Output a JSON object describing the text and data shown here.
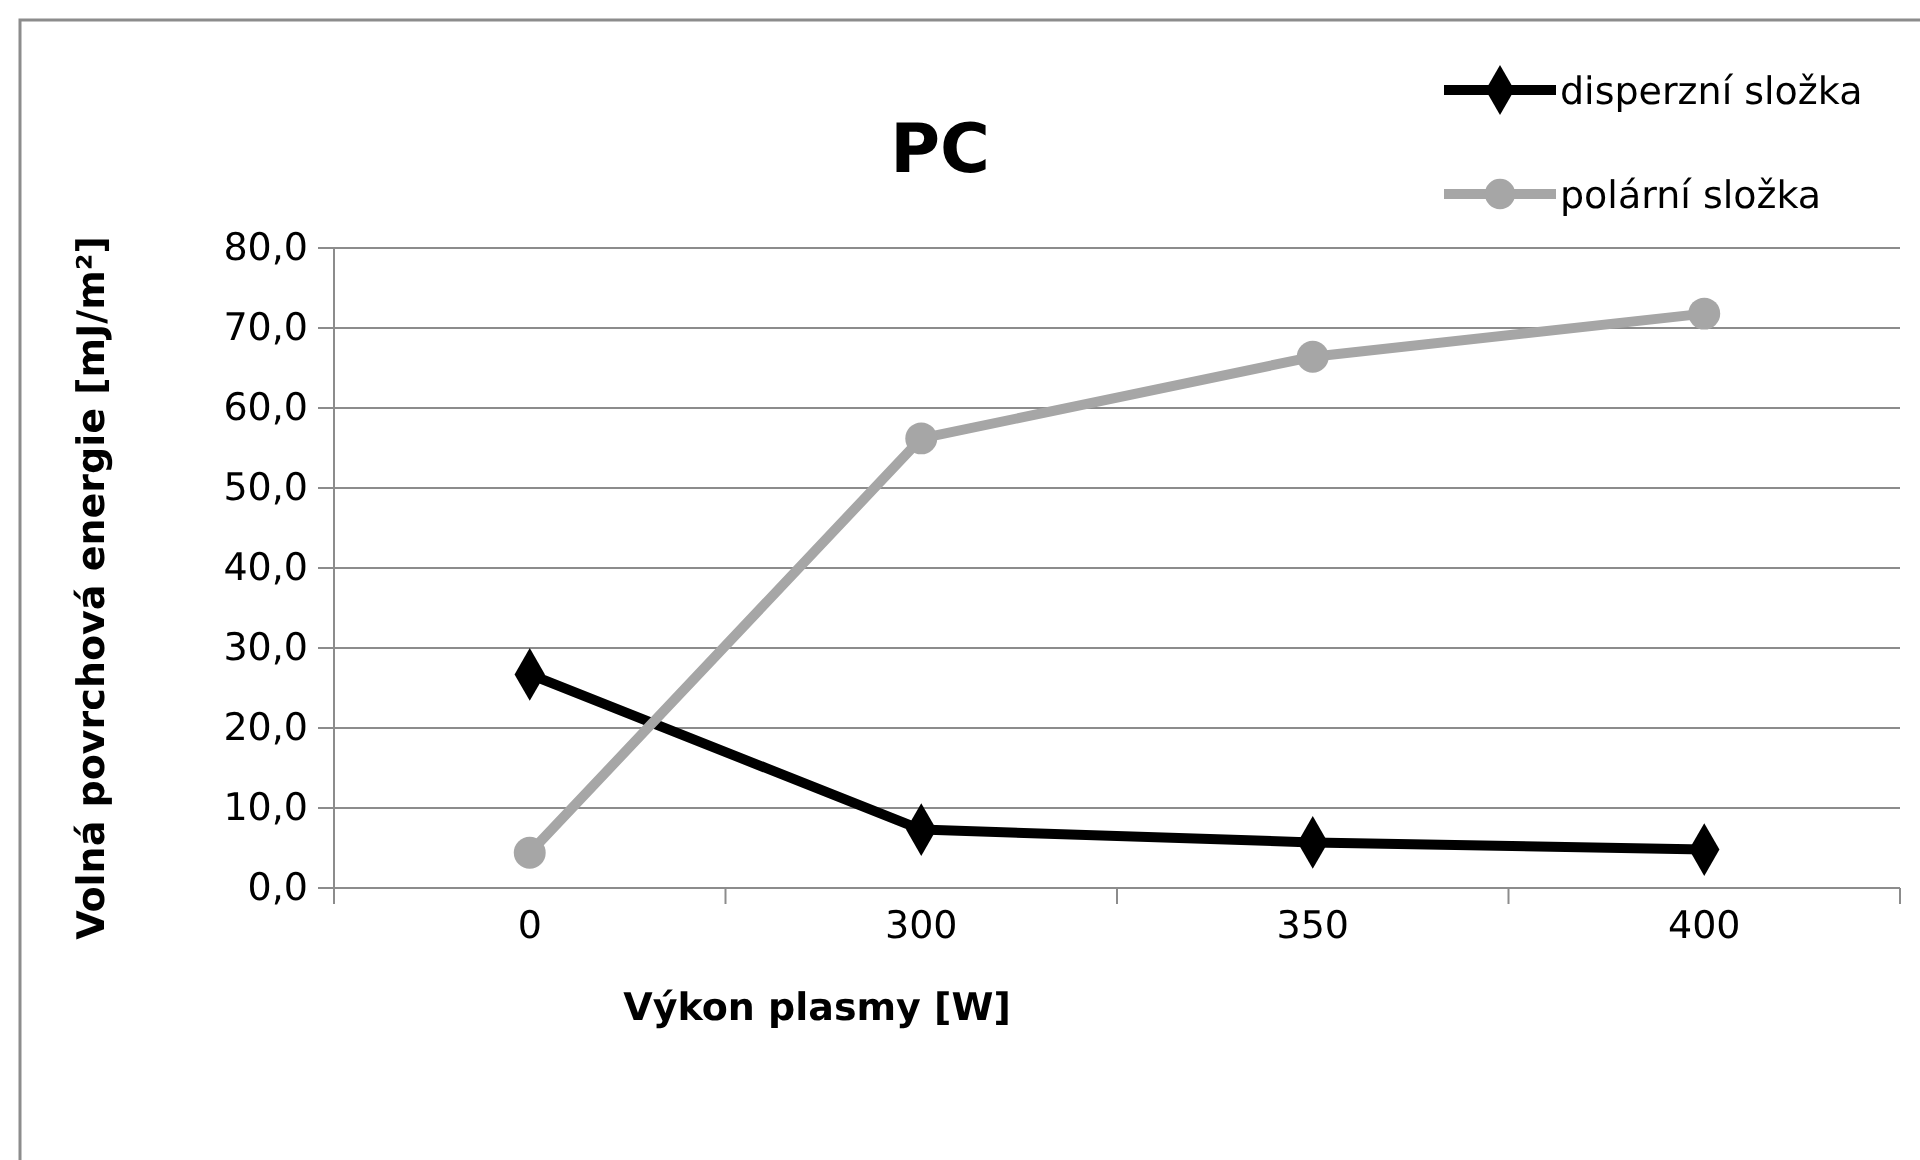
{
  "chart_data": {
    "type": "line",
    "title": "PC",
    "xlabel": "Výkon plasmy [W]",
    "ylabel": "Volná povrchová energie [mJ/m²]",
    "categories": [
      "0",
      "300",
      "350",
      "400"
    ],
    "series": [
      {
        "name": "disperzní složka",
        "color": "#000000",
        "marker": "diamond",
        "values": [
          26.7,
          7.3,
          5.7,
          4.8
        ]
      },
      {
        "name": "polární složka",
        "color": "#a6a6a6",
        "marker": "circle",
        "values": [
          4.4,
          56.2,
          66.4,
          71.8
        ]
      }
    ],
    "ylim": [
      0,
      80
    ],
    "yticks": [
      {
        "value": 0,
        "label": "0,0"
      },
      {
        "value": 10,
        "label": "10,0"
      },
      {
        "value": 20,
        "label": "20,0"
      },
      {
        "value": 30,
        "label": "30,0"
      },
      {
        "value": 40,
        "label": "40,0"
      },
      {
        "value": 50,
        "label": "50,0"
      },
      {
        "value": 60,
        "label": "60,0"
      },
      {
        "value": 70,
        "label": "70,0"
      },
      {
        "value": 80,
        "label": "80,0"
      }
    ],
    "grid": "y",
    "legend": "top right",
    "line_style": "solid"
  }
}
